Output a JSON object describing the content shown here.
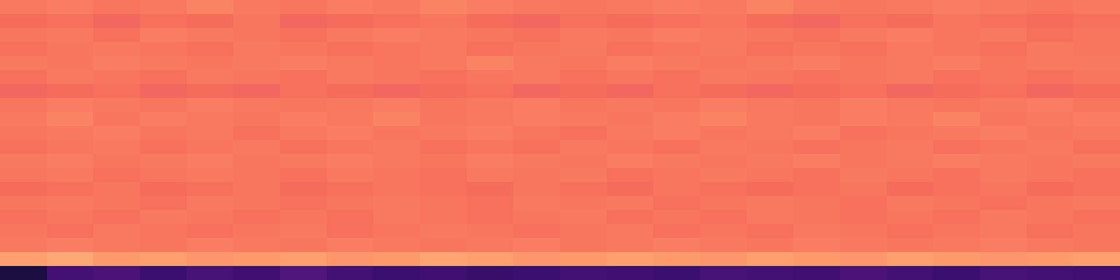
{
  "chart_data": {
    "type": "heatmap",
    "tick_labels": false,
    "zlim": [
      0,
      1
    ],
    "cells": [
      [
        0.72,
        0.73,
        0.71,
        0.72,
        0.74,
        0.72,
        0.71,
        0.73,
        0.72,
        0.74,
        0.73,
        0.72,
        0.71,
        0.72,
        0.73,
        0.72,
        0.74,
        0.72,
        0.71,
        0.72,
        0.73,
        0.72,
        0.71,
        0.72
      ],
      [
        0.69,
        0.7,
        0.68,
        0.7,
        0.69,
        0.71,
        0.68,
        0.69,
        0.7,
        0.71,
        0.69,
        0.68,
        0.7,
        0.69,
        0.7,
        0.71,
        0.69,
        0.68,
        0.7,
        0.69,
        0.71,
        0.7,
        0.69,
        0.7
      ],
      [
        0.71,
        0.72,
        0.7,
        0.73,
        0.72,
        0.71,
        0.7,
        0.72,
        0.73,
        0.72,
        0.71,
        0.7,
        0.72,
        0.71,
        0.73,
        0.72,
        0.71,
        0.7,
        0.72,
        0.73,
        0.71,
        0.72,
        0.7,
        0.71
      ],
      [
        0.7,
        0.71,
        0.72,
        0.71,
        0.7,
        0.72,
        0.71,
        0.7,
        0.71,
        0.72,
        0.7,
        0.71,
        0.72,
        0.7,
        0.71,
        0.72,
        0.7,
        0.71,
        0.7,
        0.72,
        0.71,
        0.7,
        0.72,
        0.71
      ],
      [
        0.72,
        0.71,
        0.73,
        0.72,
        0.71,
        0.72,
        0.73,
        0.72,
        0.71,
        0.72,
        0.74,
        0.72,
        0.71,
        0.73,
        0.72,
        0.71,
        0.72,
        0.73,
        0.71,
        0.72,
        0.73,
        0.71,
        0.72,
        0.72
      ],
      [
        0.7,
        0.72,
        0.71,
        0.7,
        0.72,
        0.71,
        0.7,
        0.72,
        0.71,
        0.7,
        0.71,
        0.72,
        0.7,
        0.71,
        0.7,
        0.72,
        0.71,
        0.7,
        0.71,
        0.72,
        0.7,
        0.71,
        0.7,
        0.71
      ],
      [
        0.68,
        0.69,
        0.7,
        0.68,
        0.69,
        0.68,
        0.7,
        0.69,
        0.68,
        0.69,
        0.7,
        0.68,
        0.69,
        0.68,
        0.7,
        0.69,
        0.68,
        0.69,
        0.7,
        0.68,
        0.69,
        0.7,
        0.68,
        0.69
      ],
      [
        0.71,
        0.73,
        0.72,
        0.71,
        0.73,
        0.72,
        0.71,
        0.72,
        0.73,
        0.71,
        0.72,
        0.73,
        0.71,
        0.72,
        0.71,
        0.73,
        0.72,
        0.71,
        0.73,
        0.72,
        0.71,
        0.72,
        0.73,
        0.71
      ],
      [
        0.72,
        0.74,
        0.71,
        0.73,
        0.72,
        0.71,
        0.73,
        0.72,
        0.74,
        0.71,
        0.72,
        0.73,
        0.72,
        0.71,
        0.73,
        0.74,
        0.72,
        0.71,
        0.73,
        0.72,
        0.74,
        0.71,
        0.72,
        0.73
      ],
      [
        0.71,
        0.72,
        0.73,
        0.71,
        0.72,
        0.7,
        0.72,
        0.73,
        0.71,
        0.72,
        0.73,
        0.71,
        0.7,
        0.72,
        0.73,
        0.71,
        0.72,
        0.73,
        0.7,
        0.71,
        0.72,
        0.73,
        0.71,
        0.72
      ],
      [
        0.7,
        0.71,
        0.72,
        0.7,
        0.71,
        0.72,
        0.7,
        0.71,
        0.72,
        0.7,
        0.71,
        0.7,
        0.72,
        0.71,
        0.7,
        0.72,
        0.71,
        0.7,
        0.71,
        0.72,
        0.7,
        0.71,
        0.72,
        0.7
      ],
      [
        0.72,
        0.73,
        0.71,
        0.72,
        0.73,
        0.71,
        0.72,
        0.73,
        0.72,
        0.71,
        0.73,
        0.72,
        0.71,
        0.73,
        0.72,
        0.71,
        0.72,
        0.73,
        0.71,
        0.72,
        0.73,
        0.72,
        0.71,
        0.72
      ],
      [
        0.71,
        0.72,
        0.7,
        0.71,
        0.72,
        0.71,
        0.7,
        0.72,
        0.71,
        0.7,
        0.72,
        0.71,
        0.72,
        0.7,
        0.71,
        0.72,
        0.71,
        0.7,
        0.72,
        0.71,
        0.7,
        0.72,
        0.71,
        0.7
      ],
      [
        0.69,
        0.7,
        0.71,
        0.69,
        0.7,
        0.71,
        0.69,
        0.7,
        0.71,
        0.7,
        0.69,
        0.71,
        0.7,
        0.69,
        0.71,
        0.7,
        0.69,
        0.7,
        0.71,
        0.69,
        0.7,
        0.71,
        0.69,
        0.7
      ],
      [
        0.71,
        0.72,
        0.71,
        0.7,
        0.72,
        0.71,
        0.7,
        0.71,
        0.72,
        0.71,
        0.7,
        0.72,
        0.71,
        0.72,
        0.7,
        0.71,
        0.72,
        0.71,
        0.7,
        0.72,
        0.71,
        0.7,
        0.71,
        0.72
      ],
      [
        0.7,
        0.71,
        0.7,
        0.72,
        0.71,
        0.7,
        0.71,
        0.7,
        0.72,
        0.71,
        0.7,
        0.71,
        0.72,
        0.7,
        0.71,
        0.7,
        0.72,
        0.71,
        0.7,
        0.71,
        0.7,
        0.72,
        0.71,
        0.7
      ],
      [
        0.71,
        0.7,
        0.72,
        0.71,
        0.7,
        0.71,
        0.72,
        0.7,
        0.71,
        0.72,
        0.71,
        0.7,
        0.71,
        0.72,
        0.7,
        0.71,
        0.7,
        0.72,
        0.71,
        0.7,
        0.71,
        0.72,
        0.7,
        0.71
      ],
      [
        0.72,
        0.73,
        0.72,
        0.71,
        0.73,
        0.72,
        0.71,
        0.73,
        0.72,
        0.71,
        0.72,
        0.73,
        0.71,
        0.72,
        0.73,
        0.72,
        0.71,
        0.73,
        0.72,
        0.71,
        0.72,
        0.73,
        0.72,
        0.71
      ],
      [
        0.8,
        0.82,
        0.79,
        0.8,
        0.78,
        0.79,
        0.8,
        0.78,
        0.79,
        0.81,
        0.8,
        0.78,
        0.79,
        0.8,
        0.79,
        0.78,
        0.8,
        0.79,
        0.78,
        0.8,
        0.79,
        0.78,
        0.79,
        0.8
      ],
      [
        0.12,
        0.22,
        0.24,
        0.2,
        0.23,
        0.21,
        0.25,
        0.22,
        0.2,
        0.21,
        0.19,
        0.2,
        0.22,
        0.21,
        0.2,
        0.23,
        0.22,
        0.21,
        0.24,
        0.22,
        0.2,
        0.23,
        0.22,
        0.21
      ]
    ]
  }
}
